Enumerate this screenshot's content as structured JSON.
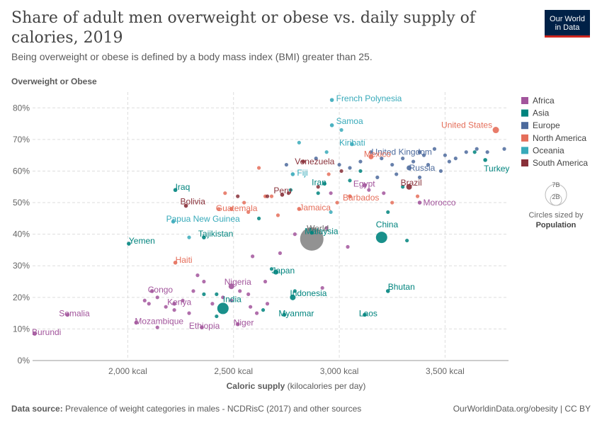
{
  "header": {
    "title": "Share of adult men overweight or obese vs. daily supply of calories, 2019",
    "subtitle": "Being overweight or obese is defined by a body mass index (BMI) greater than 25."
  },
  "logo": {
    "line1": "Our World",
    "line2": "in Data"
  },
  "footer": {
    "source_label": "Data source:",
    "source_text": "Prevalence of weight categories in males - NCDRisC (2017) and other sources",
    "right_text": "OurWorldinData.org/obesity | CC BY"
  },
  "size_legend": {
    "big": "7B",
    "small": "2B",
    "caption": "Circles sized by",
    "caption_bold": "Population"
  },
  "colors": {
    "Africa": "#a2559c",
    "Asia": "#00847e",
    "Europe": "#4c6a9c",
    "North America": "#e56e5a",
    "Oceania": "#38aaba",
    "South America": "#883039",
    "World": "#6d6d6d"
  },
  "chart_data": {
    "type": "scatter",
    "title": "Share of adult men overweight or obese vs. daily supply of calories, 2019",
    "xlabel": "Caloric supply",
    "xlabel_unit": "(kilocalories per day)",
    "ylabel": "Overweight or Obese",
    "xlim": [
      1550,
      3800
    ],
    "ylim": [
      0,
      85
    ],
    "x_ticks": [
      2000,
      2500,
      3000,
      3500
    ],
    "x_tick_labels": [
      "2,000 kcal",
      "2,500 kcal",
      "3,000 kcal",
      "3,500 kcal"
    ],
    "y_ticks": [
      0,
      10,
      20,
      30,
      40,
      50,
      60,
      70,
      80
    ],
    "y_tick_labels": [
      "0%",
      "10%",
      "20%",
      "30%",
      "40%",
      "50%",
      "60%",
      "70%",
      "80%"
    ],
    "legend": [
      "Africa",
      "Asia",
      "Europe",
      "North America",
      "Oceania",
      "South America"
    ],
    "legend_position": "right",
    "labeled_points": [
      {
        "name": "French Polynesia",
        "region": "Oceania",
        "x": 2965,
        "y": 82.5
      },
      {
        "name": "Samoa",
        "region": "Oceania",
        "x": 2965,
        "y": 74.5
      },
      {
        "name": "United States",
        "region": "North America",
        "x": 3740,
        "y": 73
      },
      {
        "name": "Kiribati",
        "region": "Oceania",
        "x": 3060,
        "y": 68.5
      },
      {
        "name": "United Kingdom",
        "region": "Europe",
        "x": 3380,
        "y": 66
      },
      {
        "name": "Mexico",
        "region": "North America",
        "x": 3150,
        "y": 64.5
      },
      {
        "name": "Turkey",
        "region": "Asia",
        "x": 3690,
        "y": 63.5
      },
      {
        "name": "Venezuela",
        "region": "South America",
        "x": 2830,
        "y": 63
      },
      {
        "name": "Russia",
        "region": "Europe",
        "x": 3330,
        "y": 61
      },
      {
        "name": "Fiji",
        "region": "Oceania",
        "x": 2780,
        "y": 59
      },
      {
        "name": "Iran",
        "region": "Asia",
        "x": 2930,
        "y": 56
      },
      {
        "name": "Egypt",
        "region": "Africa",
        "x": 3120,
        "y": 55.5
      },
      {
        "name": "Brazil",
        "region": "South America",
        "x": 3330,
        "y": 55
      },
      {
        "name": "Iraq",
        "region": "Asia",
        "x": 2225,
        "y": 54
      },
      {
        "name": "Peru",
        "region": "South America",
        "x": 2730,
        "y": 52.5
      },
      {
        "name": "Barbados",
        "region": "North America",
        "x": 3050,
        "y": 52
      },
      {
        "name": "Bolivia",
        "region": "South America",
        "x": 2275,
        "y": 49
      },
      {
        "name": "Guatemala",
        "region": "North America",
        "x": 2490,
        "y": 48
      },
      {
        "name": "Jamaica",
        "region": "North America",
        "x": 2810,
        "y": 48
      },
      {
        "name": "Morocco",
        "region": "Africa",
        "x": 3380,
        "y": 50
      },
      {
        "name": "Papua New Guinea",
        "region": "Oceania",
        "x": 2215,
        "y": 44
      },
      {
        "name": "World",
        "region": "World",
        "x": 2870,
        "y": 38.5
      },
      {
        "name": "Malaysia",
        "region": "Asia",
        "x": 2870,
        "y": 40.5
      },
      {
        "name": "Tajikistan",
        "region": "Asia",
        "x": 2360,
        "y": 39
      },
      {
        "name": "China",
        "region": "Asia",
        "x": 3200,
        "y": 39
      },
      {
        "name": "Yemen",
        "region": "Asia",
        "x": 2005,
        "y": 37
      },
      {
        "name": "Haiti",
        "region": "North America",
        "x": 2225,
        "y": 31
      },
      {
        "name": "Japan",
        "region": "Asia",
        "x": 2700,
        "y": 28
      },
      {
        "name": "Nigeria",
        "region": "Africa",
        "x": 2490,
        "y": 23.5
      },
      {
        "name": "Congo",
        "region": "Africa",
        "x": 2115,
        "y": 22
      },
      {
        "name": "Bhutan",
        "region": "Asia",
        "x": 3230,
        "y": 22
      },
      {
        "name": "Indonesia",
        "region": "Asia",
        "x": 2780,
        "y": 20
      },
      {
        "name": "Kenya",
        "region": "Africa",
        "x": 2220,
        "y": 18
      },
      {
        "name": "India",
        "region": "Asia",
        "x": 2450,
        "y": 16.5
      },
      {
        "name": "Myanmar",
        "region": "Asia",
        "x": 2740,
        "y": 14.5
      },
      {
        "name": "Laos",
        "region": "Asia",
        "x": 3120,
        "y": 14.5
      },
      {
        "name": "Somalia",
        "region": "Africa",
        "x": 1715,
        "y": 14.5
      },
      {
        "name": "Mozambique",
        "region": "Africa",
        "x": 2040,
        "y": 12
      },
      {
        "name": "Niger",
        "region": "Africa",
        "x": 2520,
        "y": 11.5
      },
      {
        "name": "Ethiopia",
        "region": "Africa",
        "x": 2350,
        "y": 10.5
      },
      {
        "name": "Burundi",
        "region": "Africa",
        "x": 1560,
        "y": 8.5
      }
    ],
    "unlabeled_points": [
      {
        "region": "Europe",
        "x": 3400,
        "y": 65
      },
      {
        "region": "Europe",
        "x": 3450,
        "y": 67
      },
      {
        "region": "Europe",
        "x": 3500,
        "y": 65
      },
      {
        "region": "Europe",
        "x": 3550,
        "y": 64
      },
      {
        "region": "Europe",
        "x": 3600,
        "y": 66
      },
      {
        "region": "Europe",
        "x": 3650,
        "y": 67
      },
      {
        "region": "Europe",
        "x": 3700,
        "y": 66
      },
      {
        "region": "Europe",
        "x": 3780,
        "y": 67
      },
      {
        "region": "Europe",
        "x": 3420,
        "y": 62
      },
      {
        "region": "Europe",
        "x": 3350,
        "y": 63
      },
      {
        "region": "Europe",
        "x": 3300,
        "y": 64
      },
      {
        "region": "Europe",
        "x": 3250,
        "y": 62
      },
      {
        "region": "Europe",
        "x": 3200,
        "y": 64
      },
      {
        "region": "Europe",
        "x": 3150,
        "y": 66
      },
      {
        "region": "Europe",
        "x": 3100,
        "y": 63
      },
      {
        "region": "Europe",
        "x": 3050,
        "y": 61
      },
      {
        "region": "Europe",
        "x": 3000,
        "y": 62
      },
      {
        "region": "Europe",
        "x": 3480,
        "y": 60
      },
      {
        "region": "Europe",
        "x": 3520,
        "y": 63
      },
      {
        "region": "Europe",
        "x": 3380,
        "y": 58
      },
      {
        "region": "Europe",
        "x": 3270,
        "y": 59
      },
      {
        "region": "Europe",
        "x": 3180,
        "y": 58
      },
      {
        "region": "Europe",
        "x": 2890,
        "y": 64
      },
      {
        "region": "Europe",
        "x": 2750,
        "y": 62
      },
      {
        "region": "Asia",
        "x": 3100,
        "y": 60
      },
      {
        "region": "Asia",
        "x": 3300,
        "y": 55
      },
      {
        "region": "Asia",
        "x": 3050,
        "y": 57
      },
      {
        "region": "Asia",
        "x": 2900,
        "y": 53
      },
      {
        "region": "Asia",
        "x": 3230,
        "y": 47
      },
      {
        "region": "Asia",
        "x": 3320,
        "y": 38
      },
      {
        "region": "Asia",
        "x": 2620,
        "y": 45
      },
      {
        "region": "Asia",
        "x": 2420,
        "y": 21
      },
      {
        "region": "Asia",
        "x": 2360,
        "y": 21
      },
      {
        "region": "Asia",
        "x": 2640,
        "y": 16
      },
      {
        "region": "Asia",
        "x": 2420,
        "y": 14
      },
      {
        "region": "Asia",
        "x": 2790,
        "y": 22
      },
      {
        "region": "Asia",
        "x": 2680,
        "y": 29
      },
      {
        "region": "Asia",
        "x": 2770,
        "y": 54
      },
      {
        "region": "Asia",
        "x": 3640,
        "y": 66
      },
      {
        "region": "Africa",
        "x": 3210,
        "y": 53
      },
      {
        "region": "Africa",
        "x": 3140,
        "y": 54
      },
      {
        "region": "Africa",
        "x": 2960,
        "y": 53
      },
      {
        "region": "Africa",
        "x": 2940,
        "y": 42
      },
      {
        "region": "Africa",
        "x": 2790,
        "y": 40
      },
      {
        "region": "Africa",
        "x": 2720,
        "y": 34
      },
      {
        "region": "Africa",
        "x": 2650,
        "y": 25
      },
      {
        "region": "Africa",
        "x": 2570,
        "y": 21
      },
      {
        "region": "Africa",
        "x": 2530,
        "y": 22
      },
      {
        "region": "Africa",
        "x": 2490,
        "y": 19
      },
      {
        "region": "Africa",
        "x": 2450,
        "y": 20
      },
      {
        "region": "Africa",
        "x": 2400,
        "y": 18
      },
      {
        "region": "Africa",
        "x": 2360,
        "y": 25
      },
      {
        "region": "Africa",
        "x": 2330,
        "y": 27
      },
      {
        "region": "Africa",
        "x": 2310,
        "y": 22
      },
      {
        "region": "Africa",
        "x": 2260,
        "y": 19
      },
      {
        "region": "Africa",
        "x": 2220,
        "y": 16
      },
      {
        "region": "Africa",
        "x": 2180,
        "y": 17
      },
      {
        "region": "Africa",
        "x": 2140,
        "y": 20
      },
      {
        "region": "Africa",
        "x": 2100,
        "y": 18
      },
      {
        "region": "Africa",
        "x": 2080,
        "y": 19
      },
      {
        "region": "Africa",
        "x": 2140,
        "y": 10.5
      },
      {
        "region": "Africa",
        "x": 2290,
        "y": 15
      },
      {
        "region": "Africa",
        "x": 2580,
        "y": 17
      },
      {
        "region": "Africa",
        "x": 2610,
        "y": 15
      },
      {
        "region": "Africa",
        "x": 2660,
        "y": 18
      },
      {
        "region": "Africa",
        "x": 2920,
        "y": 23
      },
      {
        "region": "Africa",
        "x": 3040,
        "y": 36
      },
      {
        "region": "Africa",
        "x": 2590,
        "y": 33
      },
      {
        "region": "North America",
        "x": 2620,
        "y": 61
      },
      {
        "region": "North America",
        "x": 2950,
        "y": 59
      },
      {
        "region": "North America",
        "x": 2680,
        "y": 52
      },
      {
        "region": "North America",
        "x": 2650,
        "y": 52
      },
      {
        "region": "North America",
        "x": 2460,
        "y": 53
      },
      {
        "region": "North America",
        "x": 2550,
        "y": 50
      },
      {
        "region": "North America",
        "x": 2570,
        "y": 47
      },
      {
        "region": "North America",
        "x": 2710,
        "y": 46
      },
      {
        "region": "North America",
        "x": 2990,
        "y": 50
      },
      {
        "region": "North America",
        "x": 3370,
        "y": 52
      },
      {
        "region": "North America",
        "x": 3250,
        "y": 50
      },
      {
        "region": "North America",
        "x": 2430,
        "y": 48
      },
      {
        "region": "Oceania",
        "x": 2810,
        "y": 69
      },
      {
        "region": "Oceania",
        "x": 3010,
        "y": 73
      },
      {
        "region": "Oceania",
        "x": 2940,
        "y": 66
      },
      {
        "region": "Oceania",
        "x": 2960,
        "y": 47
      },
      {
        "region": "Oceania",
        "x": 2290,
        "y": 39
      },
      {
        "region": "South America",
        "x": 2760,
        "y": 53
      },
      {
        "region": "South America",
        "x": 2660,
        "y": 52
      },
      {
        "region": "South America",
        "x": 2900,
        "y": 55
      },
      {
        "region": "South America",
        "x": 3010,
        "y": 60
      },
      {
        "region": "South America",
        "x": 2520,
        "y": 52
      }
    ]
  }
}
